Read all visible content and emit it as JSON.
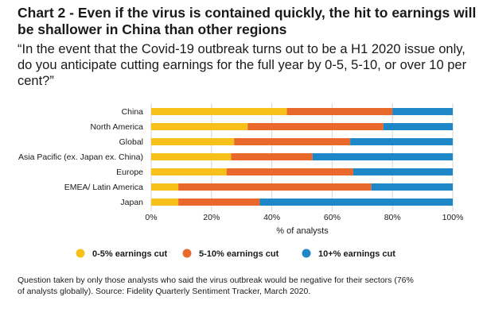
{
  "title": "Chart 2 - Even if the virus is contained quickly, the hit to earnings will be shallower in China than other regions",
  "question": "“In the event that the Covid-19 outbreak turns out to be a H1 2020 issue only, do you anticipate cutting earnings for the full year by 0-5, 5-10, or over 10 per cent?”",
  "note": {
    "line1": "Question taken by only those analysts who said the virus outbreak would be negative for their sectors (76%",
    "line2": "of analysts globally). Source: Fidelity Quarterly Sentiment Tracker, March 2020."
  },
  "chart_data": {
    "type": "bar",
    "orientation": "horizontal",
    "stacked": true,
    "categories": [
      "China",
      "North America",
      "Global",
      "Asia Pacific (ex. Japan ex. China)",
      "Europe",
      "EMEA/ Latin America",
      "Japan"
    ],
    "series": [
      {
        "name": "0-5% earnings cut",
        "color": "#f7c01b",
        "values": [
          45,
          32,
          27.5,
          26.5,
          25,
          9,
          9
        ]
      },
      {
        "name": "5-10% earnings cut",
        "color": "#e9692c",
        "values": [
          35,
          45,
          38.5,
          27,
          42,
          64,
          27
        ]
      },
      {
        "name": "10+% earnings cut",
        "color": "#1e87c8",
        "values": [
          20,
          23,
          34,
          46.5,
          33,
          27,
          64
        ]
      }
    ],
    "xlabel": "% of analysts",
    "x_ticks": [
      "0%",
      "20%",
      "40%",
      "60%",
      "80%",
      "100%"
    ],
    "xlim": [
      0,
      100
    ],
    "grid": true,
    "legend_position": "bottom"
  }
}
